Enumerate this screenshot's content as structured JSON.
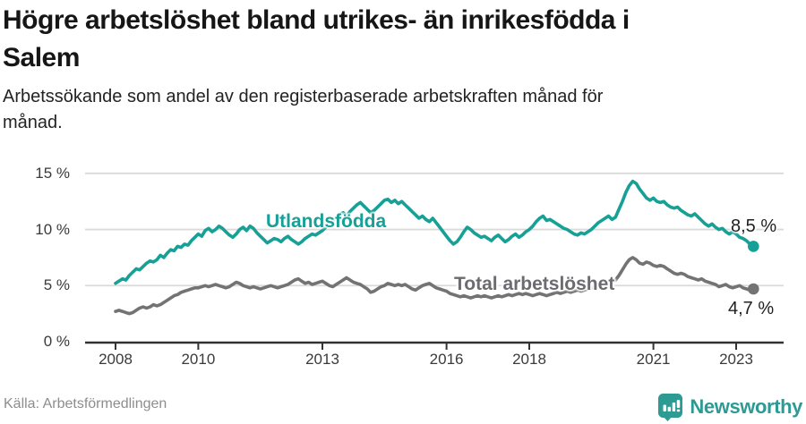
{
  "header": {
    "title_line1": "Högre arbetslöshet bland utrikes- än inrikesfödda i",
    "title_line2": "Salem",
    "subtitle_line1": "Arbetssökande som andel av den registerbaserade arbetskraften månad för",
    "subtitle_line2": "månad."
  },
  "footer": {
    "source": "Källa: Arbetsförmedlingen",
    "brand": "Newsworthy",
    "brand_color": "#2d9a94",
    "brand_icon": "bar-chart-pin-icon"
  },
  "chart_data": {
    "type": "line",
    "title": "Högre arbetslöshet bland utrikes- än inrikesfödda i Salem",
    "subtitle": "Arbetssökande som andel av den registerbaserade arbetskraften månad för månad.",
    "grid": "horizontal",
    "legend_position": "inline-labels",
    "x_start_year": 2008,
    "x_months_per_step": 1,
    "xlim": [
      2007.25,
      2024.1
    ],
    "ylim": [
      0,
      16
    ],
    "xticks": [
      "2008",
      "2010",
      "2013",
      "2016",
      "2018",
      "2021",
      "2023"
    ],
    "xtick_years": [
      2008,
      2010,
      2013,
      2016,
      2018,
      2021,
      2023
    ],
    "yticks": [
      0,
      5,
      10,
      15
    ],
    "ytick_labels": [
      "0 %",
      "5 %",
      "10 %",
      "15 %"
    ],
    "axis_color": "#333333",
    "grid_color": "#dadada",
    "series": [
      {
        "name": "Utlandsfödda",
        "color": "#16a096",
        "end_label": "8,5 %",
        "end_value": 8.5,
        "values": [
          5.2,
          5.4,
          5.6,
          5.5,
          5.9,
          6.2,
          6.5,
          6.4,
          6.7,
          7.0,
          7.2,
          7.1,
          7.3,
          7.7,
          7.5,
          7.9,
          8.2,
          8.1,
          8.5,
          8.4,
          8.7,
          8.6,
          9.0,
          9.3,
          9.6,
          9.4,
          9.9,
          10.1,
          9.8,
          10.0,
          10.3,
          10.1,
          9.8,
          9.5,
          9.3,
          9.6,
          10.0,
          10.2,
          9.9,
          10.3,
          10.1,
          9.7,
          9.4,
          9.1,
          8.8,
          9.0,
          9.2,
          9.1,
          8.9,
          9.2,
          9.4,
          9.1,
          8.9,
          8.7,
          8.9,
          9.2,
          9.4,
          9.6,
          9.5,
          9.7,
          9.9,
          10.2,
          10.5,
          10.8,
          11.0,
          11.3,
          11.5,
          11.2,
          11.6,
          11.9,
          12.2,
          12.4,
          12.1,
          11.8,
          11.5,
          11.7,
          12.0,
          12.3,
          12.6,
          12.7,
          12.4,
          12.6,
          12.3,
          12.5,
          12.2,
          11.9,
          11.6,
          11.3,
          11.0,
          11.2,
          10.9,
          10.7,
          11.0,
          10.6,
          10.2,
          9.8,
          9.4,
          9.0,
          8.7,
          8.9,
          9.3,
          9.8,
          10.2,
          10.0,
          9.7,
          9.5,
          9.3,
          9.4,
          9.2,
          9.0,
          9.3,
          9.5,
          9.2,
          8.9,
          9.1,
          9.4,
          9.6,
          9.3,
          9.5,
          9.8,
          10.0,
          10.3,
          10.7,
          11.0,
          11.2,
          10.8,
          10.9,
          10.7,
          10.5,
          10.3,
          10.1,
          10.0,
          9.8,
          9.6,
          9.5,
          9.7,
          9.6,
          9.8,
          10.0,
          10.3,
          10.6,
          10.8,
          11.0,
          11.2,
          10.9,
          11.1,
          11.8,
          12.5,
          13.3,
          13.9,
          14.3,
          14.1,
          13.6,
          13.2,
          12.8,
          12.6,
          12.8,
          12.5,
          12.4,
          12.5,
          12.2,
          12.0,
          11.9,
          12.0,
          11.7,
          11.5,
          11.3,
          11.2,
          11.4,
          11.1,
          10.8,
          10.5,
          10.3,
          10.5,
          10.2,
          10.0,
          10.1,
          9.8,
          9.6,
          9.8,
          9.6,
          9.3,
          9.2,
          9.0,
          8.7,
          8.5
        ]
      },
      {
        "name": "Total arbetslöshet",
        "color": "#737373",
        "end_label": "4,7 %",
        "end_value": 4.7,
        "values": [
          2.7,
          2.8,
          2.7,
          2.6,
          2.5,
          2.6,
          2.8,
          3.0,
          3.1,
          3.0,
          3.1,
          3.3,
          3.2,
          3.3,
          3.5,
          3.7,
          3.9,
          4.1,
          4.2,
          4.4,
          4.5,
          4.6,
          4.7,
          4.8,
          4.8,
          4.9,
          5.0,
          4.9,
          5.0,
          5.1,
          5.0,
          4.9,
          4.8,
          4.9,
          5.1,
          5.3,
          5.2,
          5.0,
          4.9,
          4.8,
          4.9,
          4.8,
          4.7,
          4.8,
          4.9,
          5.0,
          4.9,
          4.8,
          4.9,
          5.0,
          5.1,
          5.3,
          5.5,
          5.6,
          5.4,
          5.2,
          5.3,
          5.1,
          5.2,
          5.3,
          5.4,
          5.2,
          5.0,
          4.9,
          5.1,
          5.3,
          5.5,
          5.7,
          5.5,
          5.3,
          5.2,
          5.1,
          4.9,
          4.7,
          4.4,
          4.5,
          4.7,
          4.9,
          5.0,
          5.2,
          5.1,
          5.0,
          5.1,
          5.0,
          5.1,
          4.9,
          4.7,
          4.6,
          4.8,
          5.0,
          5.1,
          5.2,
          5.0,
          4.8,
          4.7,
          4.6,
          4.5,
          4.3,
          4.2,
          4.1,
          4.0,
          4.1,
          4.0,
          3.9,
          4.0,
          4.1,
          4.0,
          4.1,
          4.0,
          3.9,
          4.0,
          4.1,
          4.0,
          4.1,
          4.2,
          4.1,
          4.2,
          4.3,
          4.2,
          4.3,
          4.2,
          4.1,
          4.2,
          4.3,
          4.2,
          4.1,
          4.2,
          4.3,
          4.4,
          4.3,
          4.4,
          4.5,
          4.4,
          4.5,
          4.6,
          4.5,
          4.6,
          4.7,
          4.8,
          4.9,
          5.0,
          5.1,
          5.2,
          5.3,
          5.4,
          5.5,
          5.9,
          6.4,
          6.9,
          7.3,
          7.5,
          7.3,
          7.0,
          6.9,
          7.1,
          7.0,
          6.8,
          6.7,
          6.8,
          6.7,
          6.5,
          6.3,
          6.1,
          6.0,
          6.1,
          6.0,
          5.8,
          5.7,
          5.6,
          5.5,
          5.6,
          5.4,
          5.3,
          5.2,
          5.1,
          4.9,
          5.0,
          5.1,
          4.9,
          4.8,
          4.9,
          5.0,
          4.8,
          4.7,
          4.6,
          4.7
        ]
      }
    ],
    "source": "Källa: Arbetsförmedlingen"
  }
}
